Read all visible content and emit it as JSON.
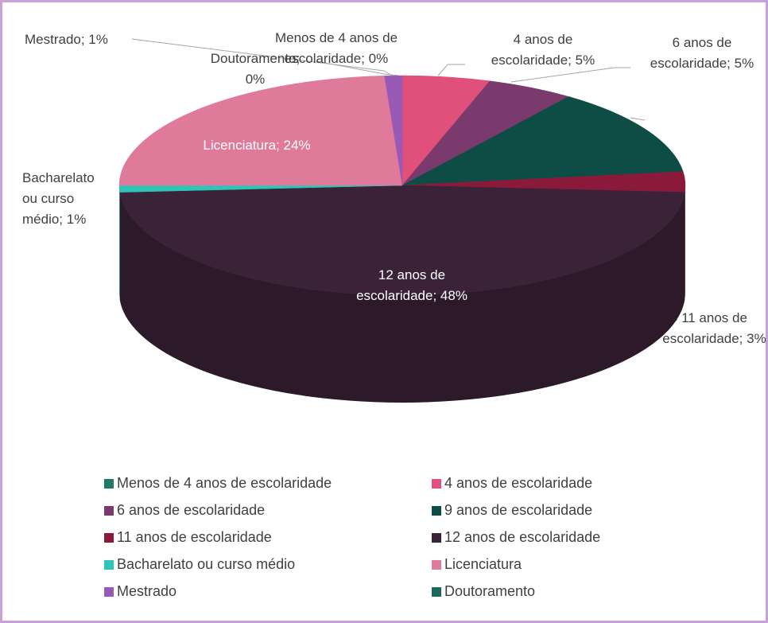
{
  "chart_data": {
    "type": "pie3d",
    "categories": [
      "Menos de 4 anos de escolaridade",
      "4 anos de escolaridade",
      "6 anos de escolaridade",
      "9 anos de escolaridade",
      "11 anos de escolaridade",
      "12 anos de escolaridade",
      "Bacharelato ou curso médio",
      "Licenciatura",
      "Mestrado",
      "Doutoramento"
    ],
    "values": [
      0,
      5,
      5,
      13,
      3,
      48,
      1,
      24,
      1,
      0
    ],
    "value_labels": [
      "Menos de 4 anos de escolaridade; 0%",
      "4 anos de escolaridade; 5%",
      "6 anos de escolaridade; 5%",
      null,
      "11 anos de escolaridade; 3%",
      "12 anos de escolaridade; 48%",
      "Bacharelato ou curso médio; 1%",
      "Licenciatura; 24%",
      "Mestrado; 1%",
      "Doutoramento; 0%"
    ],
    "colors": [
      "#1f7a6b",
      "#e0507a",
      "#7b3a6e",
      "#0d4d45",
      "#8b1a3a",
      "#3a2238",
      "#2ec4b6",
      "#e07a9a",
      "#9b59b6",
      "#1a6b5e"
    ],
    "legend": "bottom"
  }
}
